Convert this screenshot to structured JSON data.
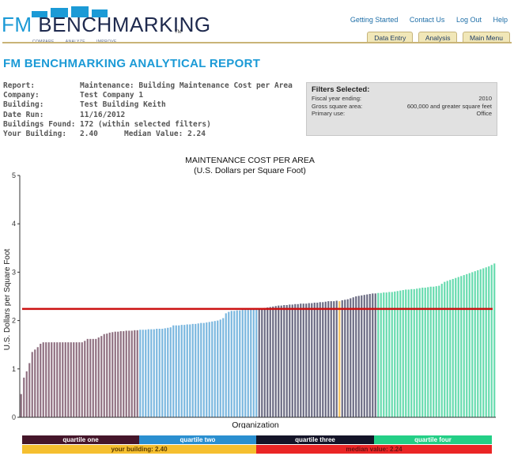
{
  "header": {
    "logo": {
      "fm": "FM",
      "word": "BENCHMARKING",
      "tm": "TM",
      "tagline": [
        "COMPARE",
        "ANALYZE",
        "IMPROVE"
      ]
    },
    "links": [
      "Getting Started",
      "Contact Us",
      "Log Out",
      "Help"
    ],
    "tabs": [
      "Data Entry",
      "Analysis",
      "Main Menu"
    ]
  },
  "report": {
    "title": "FM BENCHMARKING ANALYTICAL REPORT",
    "rows": [
      {
        "label": "Report:",
        "value": "Maintenance: Building Maintenance Cost per Area"
      },
      {
        "label": "Company:",
        "value": "Test Company 1"
      },
      {
        "label": "Building:",
        "value": "Test Building Keith"
      },
      {
        "label": "Date Run:",
        "value": "11/16/2012"
      },
      {
        "label": "Buildings Found:",
        "value": "172 (within selected filters)"
      }
    ],
    "your_building_label": "Your Building:",
    "your_building_value": "2.40",
    "median_label": "Median Value: 2.24"
  },
  "filters": {
    "title": "Filters Selected:",
    "rows": [
      {
        "label": "Fiscal year ending:",
        "value": "2010"
      },
      {
        "label": "Gross square area:",
        "value": "600,000 and greater square feet"
      },
      {
        "label": "Primary use:",
        "value": "Office"
      }
    ]
  },
  "chart_data": {
    "type": "bar",
    "title": "MAINTENANCE COST PER AREA",
    "subtitle": "(U.S. Dollars per Square Foot)",
    "xlabel": "Organization",
    "ylabel": "U.S. Dollars per Square Foot",
    "ylim": [
      0,
      5
    ],
    "yticks": [
      "0",
      "1",
      "2",
      "3",
      "4",
      "5"
    ],
    "grid": false,
    "median": 2.24,
    "your_building": 2.4,
    "your_building_index": 115,
    "quartile_breaks": [
      43,
      86,
      129
    ],
    "colors": {
      "q1": "#8f6f80",
      "q2": "#7ab7df",
      "q3": "#6a6a82",
      "q4": "#66dbae",
      "your_building": "#f5c25d",
      "median": "#cc1111"
    },
    "values": [
      0.48,
      0.82,
      0.95,
      1.12,
      1.35,
      1.4,
      1.45,
      1.52,
      1.55,
      1.55,
      1.55,
      1.55,
      1.55,
      1.55,
      1.55,
      1.55,
      1.55,
      1.55,
      1.55,
      1.55,
      1.55,
      1.55,
      1.55,
      1.58,
      1.62,
      1.62,
      1.62,
      1.62,
      1.65,
      1.68,
      1.72,
      1.73,
      1.75,
      1.76,
      1.77,
      1.77,
      1.78,
      1.78,
      1.79,
      1.79,
      1.79,
      1.8,
      1.8,
      1.81,
      1.81,
      1.81,
      1.82,
      1.82,
      1.82,
      1.83,
      1.83,
      1.83,
      1.84,
      1.85,
      1.86,
      1.9,
      1.9,
      1.9,
      1.91,
      1.91,
      1.92,
      1.92,
      1.93,
      1.93,
      1.94,
      1.95,
      1.95,
      1.96,
      1.97,
      1.98,
      1.99,
      2.0,
      2.02,
      2.05,
      2.15,
      2.18,
      2.2,
      2.2,
      2.21,
      2.21,
      2.22,
      2.22,
      2.22,
      2.23,
      2.23,
      2.23,
      2.24,
      2.25,
      2.26,
      2.27,
      2.28,
      2.29,
      2.3,
      2.31,
      2.31,
      2.32,
      2.32,
      2.33,
      2.33,
      2.34,
      2.34,
      2.35,
      2.35,
      2.35,
      2.36,
      2.36,
      2.37,
      2.37,
      2.38,
      2.38,
      2.39,
      2.4,
      2.4,
      2.4,
      2.41,
      2.4,
      2.42,
      2.43,
      2.44,
      2.46,
      2.48,
      2.5,
      2.51,
      2.52,
      2.53,
      2.54,
      2.55,
      2.56,
      2.56,
      2.57,
      2.57,
      2.58,
      2.58,
      2.59,
      2.59,
      2.6,
      2.61,
      2.62,
      2.63,
      2.64,
      2.64,
      2.65,
      2.65,
      2.66,
      2.67,
      2.68,
      2.68,
      2.69,
      2.7,
      2.7,
      2.71,
      2.72,
      2.76,
      2.8,
      2.82,
      2.84,
      2.86,
      2.88,
      2.9,
      2.92,
      2.94,
      2.96,
      2.98,
      3.0,
      3.02,
      3.04,
      3.06,
      3.08,
      3.1,
      3.12,
      3.15,
      3.18
    ]
  },
  "legend": {
    "quartiles": [
      "quartile one",
      "quartile two",
      "quartile three",
      "quartile four"
    ],
    "your_building": "your building: 2.40",
    "median": "median value: 2.24"
  }
}
